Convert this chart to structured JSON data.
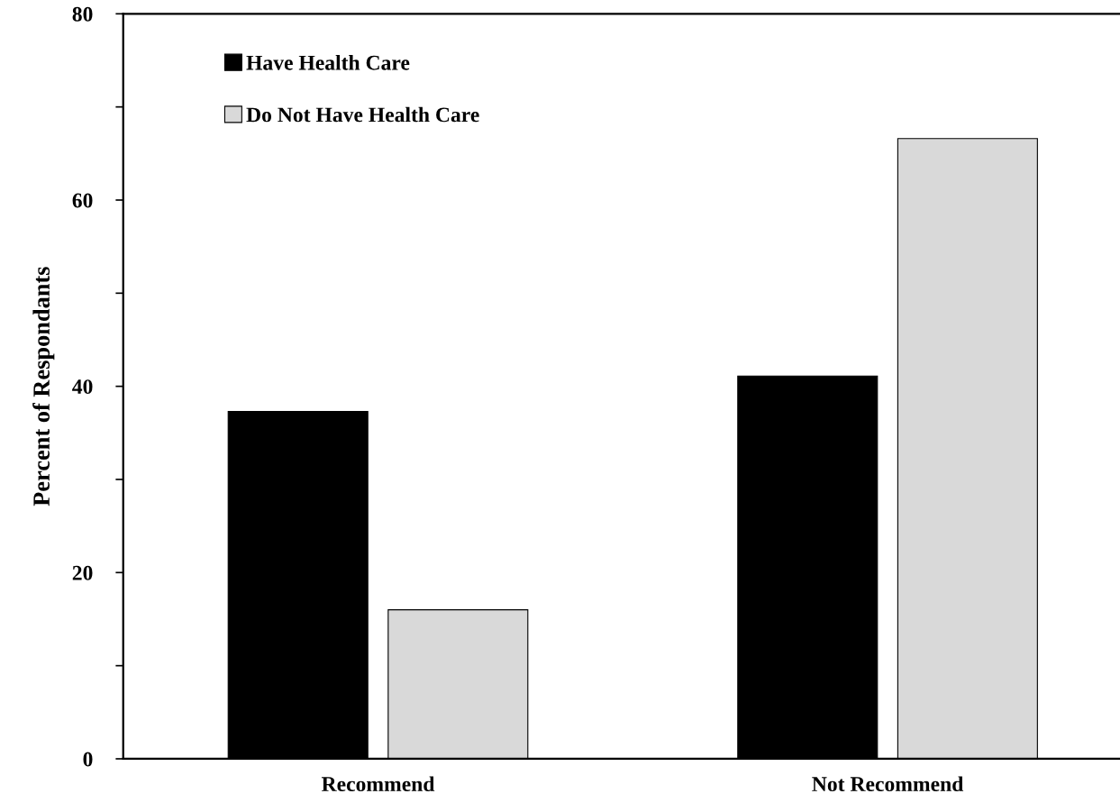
{
  "chart_data": {
    "type": "bar",
    "ylabel": "Percent of Respondants",
    "categories": [
      "Recommend",
      "Not Recommend"
    ],
    "series": [
      {
        "name": "Have Health Care",
        "color": "#000000",
        "values": [
          37.3,
          41.1
        ]
      },
      {
        "name": "Do Not Have Health Care",
        "color": "#d9d9d9",
        "values": [
          16.0,
          66.6
        ]
      }
    ],
    "ylim": [
      0,
      80
    ],
    "yticks": [
      0,
      {
        "value": 10,
        "label": null
      },
      20,
      {
        "value": 30,
        "label": null
      },
      40,
      {
        "value": 50,
        "label": null
      },
      60,
      {
        "value": 70,
        "label": null
      },
      80
    ],
    "grid": false,
    "legend": "top left"
  }
}
